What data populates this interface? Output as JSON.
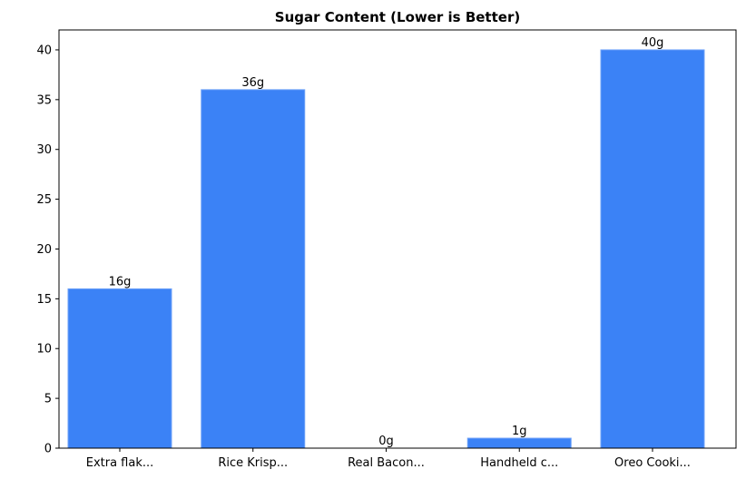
{
  "chart_data": {
    "type": "bar",
    "title": "Sugar Content (Lower is Better)",
    "categories": [
      "Extra flak...",
      "Rice Krisp...",
      "Real Bacon...",
      "Handheld c...",
      "Oreo Cooki..."
    ],
    "values": [
      16,
      36,
      0,
      1,
      40
    ],
    "value_labels": [
      "16g",
      "36g",
      "0g",
      "1g",
      "40g"
    ],
    "color": "#3b82f6",
    "ylim": [
      0,
      42
    ],
    "yticks": [
      0,
      5,
      10,
      15,
      20,
      25,
      30,
      35,
      40
    ],
    "grid": false
  }
}
